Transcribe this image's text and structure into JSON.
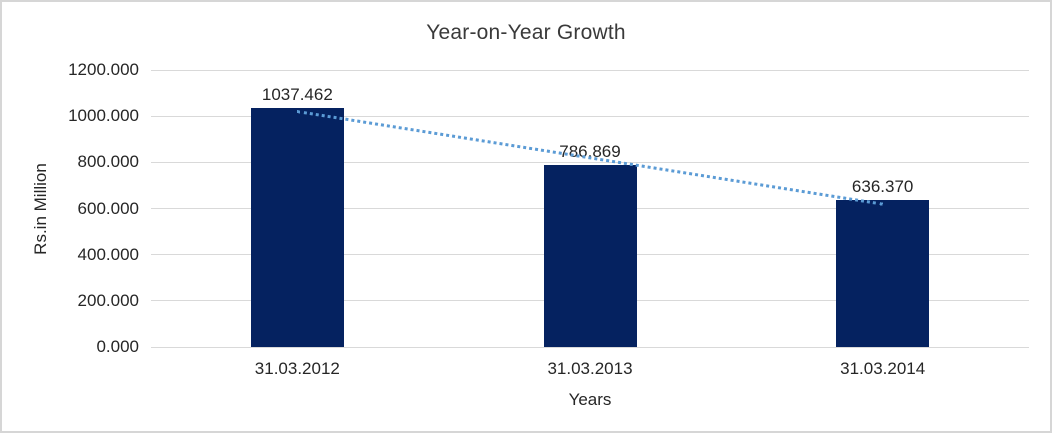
{
  "window": {
    "background": "#ffffff",
    "border_color": "#d6d6d6"
  },
  "chart_data": {
    "type": "bar",
    "title": "Year-on-Year Growth",
    "xlabel": "Years",
    "ylabel": "Rs.in Million",
    "categories": [
      "31.03.2012",
      "31.03.2013",
      "31.03.2014"
    ],
    "values": [
      1037.462,
      786.869,
      636.37
    ],
    "data_labels": [
      "1037.462",
      "786.869",
      "636.370"
    ],
    "ylim": [
      0,
      1200
    ],
    "ytick_step": 200,
    "ytick_labels": [
      "0.000",
      "200.000",
      "400.000",
      "600.000",
      "800.000",
      "1000.000",
      "1200.000"
    ],
    "grid": true,
    "legend": false,
    "bar_color": "#052260",
    "gridline_color": "#d9d9d9",
    "text_color": "#262626",
    "trendline": {
      "type": "linear",
      "style": "dotted",
      "color": "#5b9bd5",
      "start_value": 1020.8,
      "end_value": 619.7
    }
  }
}
